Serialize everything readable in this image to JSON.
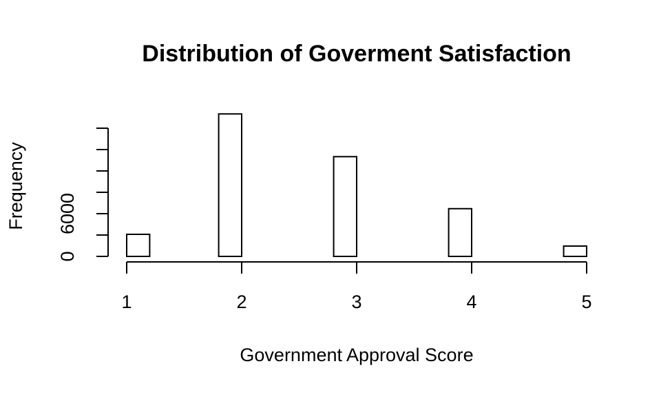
{
  "chart_data": {
    "type": "histogram",
    "title": "Distribution of Goverment Satisfaction",
    "xlabel": "Government Approval Score",
    "ylabel": "Frequency",
    "bins": [
      1,
      1.2,
      1.4,
      1.6,
      1.8,
      2,
      2.2,
      2.4,
      2.6,
      2.8,
      3,
      3.2,
      3.4,
      3.6,
      3.8,
      4,
      4.2,
      4.4,
      4.6,
      4.8,
      5
    ],
    "values": [
      3100,
      0,
      0,
      0,
      20000,
      0,
      0,
      0,
      0,
      14000,
      0,
      0,
      0,
      0,
      6700,
      0,
      0,
      0,
      0,
      1450
    ],
    "color": "#ffffff",
    "xlim": [
      1,
      5
    ],
    "xticks": [
      1,
      2,
      3,
      4,
      5
    ],
    "ylim": [
      0,
      20000
    ],
    "yticks": [
      0,
      {
        "value": 3000,
        "label": null
      },
      6000,
      {
        "value": 9000,
        "label": null
      },
      {
        "value": 12000,
        "label": null
      },
      {
        "value": 15000,
        "label": null
      },
      {
        "value": 18000,
        "label": null
      }
    ],
    "grid": false
  }
}
